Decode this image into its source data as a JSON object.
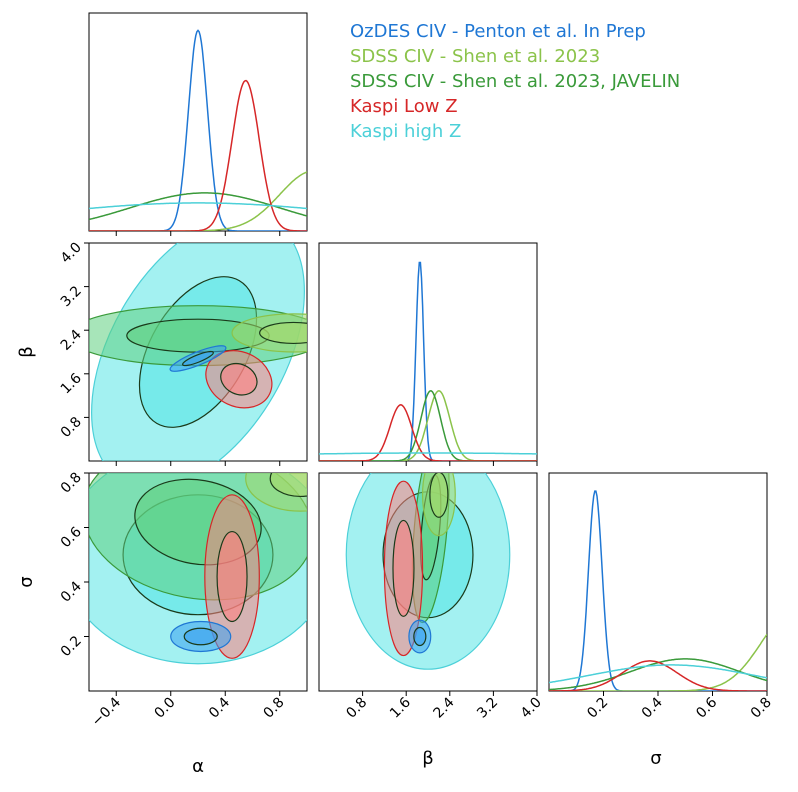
{
  "chart_data": {
    "type": "corner",
    "parameters": [
      {
        "name": "alpha",
        "label": "α",
        "range": [
          -0.6,
          1.0
        ],
        "ticks": [
          -0.4,
          0.0,
          0.4,
          0.8
        ],
        "tick_labels": [
          "−0.4",
          "0.0",
          "0.4",
          "0.8"
        ]
      },
      {
        "name": "beta",
        "label": "β",
        "range": [
          0.0,
          4.0
        ],
        "ticks": [
          0.8,
          1.6,
          2.4,
          3.2,
          4.0
        ],
        "tick_labels": [
          "0.8",
          "1.6",
          "2.4",
          "3.2",
          "4.0"
        ]
      },
      {
        "name": "sigma",
        "label": "σ",
        "range": [
          0.0,
          0.8
        ],
        "ticks": [
          0.2,
          0.4,
          0.6,
          0.8
        ],
        "tick_labels": [
          "0.2",
          "0.4",
          "0.6",
          "0.8"
        ]
      }
    ],
    "legend_position": "top-right",
    "series": [
      {
        "name": "OzDES CIV - Penton et al. In Prep",
        "color": "#1f77d4",
        "fill": "#3aa0f0",
        "marginals": {
          "alpha": {
            "mean": 0.2,
            "sd": 0.07,
            "peak": 1.0
          },
          "beta": {
            "mean": 1.85,
            "sd": 0.07,
            "peak": 1.0
          },
          "sigma": {
            "mean": 0.17,
            "sd": 0.025,
            "peak": 1.0
          }
        },
        "contours": {
          "alpha_beta": {
            "center": [
              0.2,
              1.88
            ],
            "spread": [
              0.22,
              0.12
            ],
            "angle_deg": -22
          },
          "alpha_sigma": {
            "center": [
              0.22,
              0.2
            ],
            "spread": [
              0.22,
              0.055
            ],
            "angle_deg": 0
          },
          "beta_sigma": {
            "center": [
              1.85,
              0.2
            ],
            "spread": [
              0.2,
              0.06
            ],
            "angle_deg": 0
          }
        }
      },
      {
        "name": "SDSS CIV - Shen et al. 2023",
        "color": "#8bc34a",
        "fill": "#a3d96b",
        "marginals": {
          "alpha": {
            "mean": 1.05,
            "sd": 0.25,
            "peak": 0.3
          },
          "beta": {
            "mean": 2.2,
            "sd": 0.2,
            "peak": 0.35
          },
          "sigma": {
            "mean": 0.9,
            "sd": 0.12,
            "peak": 0.4
          }
        },
        "contours": {
          "alpha_beta": {
            "center": [
              0.9,
              2.35
            ],
            "spread": [
              0.45,
              0.35
            ],
            "angle_deg": 0
          },
          "alpha_sigma": {
            "center": [
              0.95,
              0.78
            ],
            "spread": [
              0.4,
              0.12
            ],
            "angle_deg": 0
          },
          "beta_sigma": {
            "center": [
              2.2,
              0.72
            ],
            "spread": [
              0.3,
              0.15
            ],
            "angle_deg": 0
          }
        }
      },
      {
        "name": "SDSS CIV - Shen et al. 2023, JAVELIN",
        "color": "#3a9a3a",
        "fill": "#5fd07f",
        "marginals": {
          "alpha": {
            "mean": 0.25,
            "sd": 0.55,
            "peak": 0.19
          },
          "beta": {
            "mean": 2.05,
            "sd": 0.18,
            "peak": 0.35
          },
          "sigma": {
            "mean": 0.5,
            "sd": 0.2,
            "peak": 0.16
          }
        },
        "contours": {
          "alpha_beta": {
            "center": [
              0.2,
              2.3
            ],
            "spread": [
              0.95,
              0.55
            ],
            "angle_deg": 0
          },
          "alpha_sigma": {
            "center": [
              0.2,
              0.62
            ],
            "spread": [
              0.85,
              0.28
            ],
            "angle_deg": 10
          },
          "beta_sigma": {
            "center": [
              2.05,
              0.6
            ],
            "spread": [
              0.3,
              0.35
            ],
            "angle_deg": 5
          }
        }
      },
      {
        "name": "Kaspi Low Z",
        "color": "#d62728",
        "fill": "#ff8080",
        "marginals": {
          "alpha": {
            "mean": 0.55,
            "sd": 0.1,
            "peak": 0.75
          },
          "beta": {
            "mean": 1.5,
            "sd": 0.2,
            "peak": 0.28
          },
          "sigma": {
            "mean": 0.37,
            "sd": 0.1,
            "peak": 0.15
          }
        },
        "contours": {
          "alpha_beta": {
            "center": [
              0.5,
              1.5
            ],
            "spread": [
              0.25,
              0.5
            ],
            "angle_deg": 25
          },
          "alpha_sigma": {
            "center": [
              0.45,
              0.42
            ],
            "spread": [
              0.2,
              0.3
            ],
            "angle_deg": 0
          },
          "beta_sigma": {
            "center": [
              1.55,
              0.45
            ],
            "spread": [
              0.35,
              0.32
            ],
            "angle_deg": 0
          }
        }
      },
      {
        "name": "Kaspi high Z",
        "color": "#4cd0d8",
        "fill": "#58e6e6",
        "marginals": {
          "alpha": {
            "mean": 0.2,
            "sd": 1.2,
            "peak": 0.14
          },
          "beta": {
            "mean": 2.0,
            "sd": 4.0,
            "peak": 0.04
          },
          "sigma": {
            "mean": 0.45,
            "sd": 0.3,
            "peak": 0.13
          }
        },
        "contours": {
          "alpha_beta": {
            "center": [
              0.2,
              2.0
            ],
            "spread": [
              1.1,
              1.6
            ],
            "angle_deg": -60
          },
          "alpha_sigma": {
            "center": [
              0.2,
              0.5
            ],
            "spread": [
              1.0,
              0.4
            ],
            "angle_deg": 0
          },
          "beta_sigma": {
            "center": [
              2.0,
              0.5
            ],
            "spread": [
              1.5,
              0.42
            ],
            "angle_deg": 0
          }
        }
      }
    ]
  }
}
